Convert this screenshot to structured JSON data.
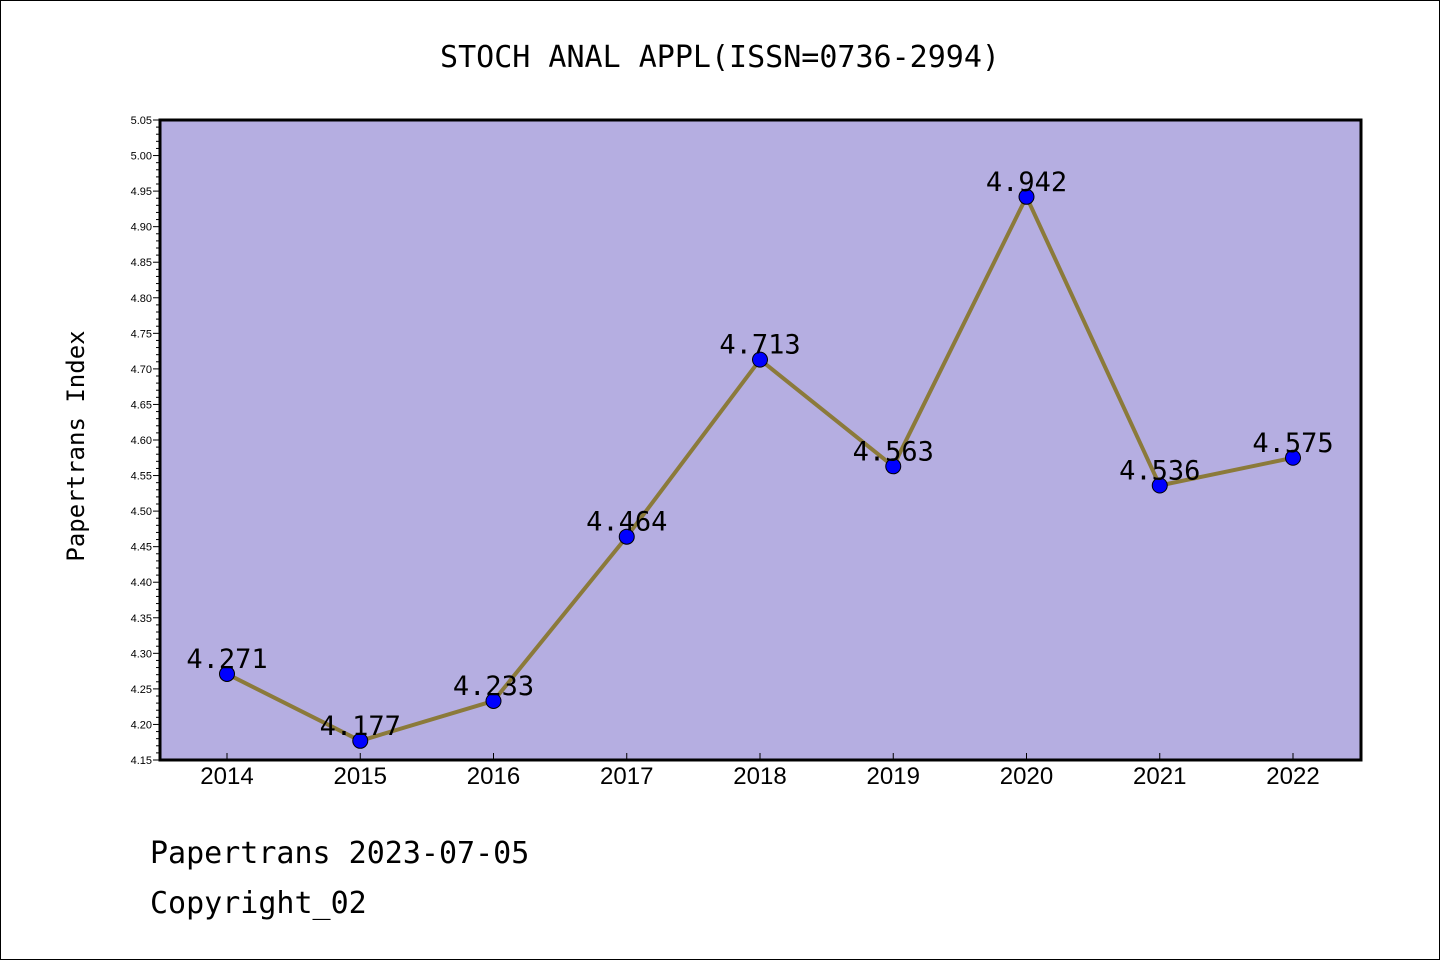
{
  "chart_data": {
    "type": "line",
    "title": "STOCH ANAL APPL(ISSN=0736-2994)",
    "ylabel": "Papertrans Index",
    "xlabel": "",
    "categories": [
      "2014",
      "2015",
      "2016",
      "2017",
      "2018",
      "2019",
      "2020",
      "2021",
      "2022"
    ],
    "values": [
      4.271,
      4.177,
      4.233,
      4.464,
      4.713,
      4.563,
      4.942,
      4.536,
      4.575
    ],
    "data_labels": [
      "4.271",
      "4.177",
      "4.233",
      "4.464",
      "4.713",
      "4.563",
      "4.942",
      "4.536",
      "4.575"
    ],
    "ylim": [
      4.15,
      5.05
    ],
    "yticks": [
      "4.15",
      "4.20",
      "4.25",
      "4.30",
      "4.35",
      "4.40",
      "4.45",
      "4.50",
      "4.55",
      "4.60",
      "4.65",
      "4.70",
      "4.75",
      "4.80",
      "4.85",
      "4.90",
      "4.95",
      "5.00",
      "5.05"
    ],
    "grid": false,
    "colors": {
      "plot_background": "#b5aee1",
      "line": "#8b7a3a",
      "marker": "#0000ff"
    }
  },
  "footer": {
    "line1": "Papertrans 2023-07-05",
    "line2": "Copyright_02"
  }
}
